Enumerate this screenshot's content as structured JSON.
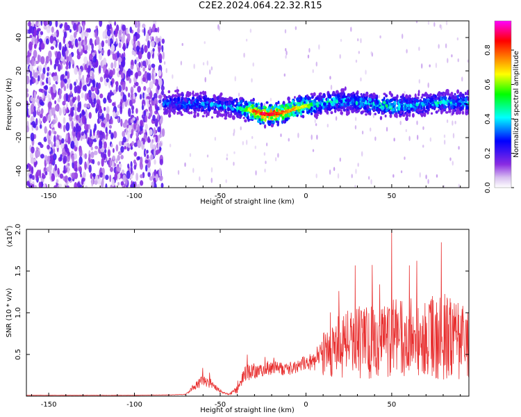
{
  "figure": {
    "title": "C2E2.2024.064.22.32.R15"
  },
  "colors": {
    "spectrogram_colormap": [
      "#ffffff",
      "#8a2be2",
      "#0000ff",
      "#00ffff",
      "#00ff00",
      "#ffff00",
      "#ff8000",
      "#ff0000",
      "#ff00ff"
    ],
    "snr_line": "#e83030"
  },
  "chart_data": [
    {
      "type": "heatmap",
      "xlabel": "Height of straight line (km)",
      "ylabel": "Frequency (Hz)",
      "xlim": [
        -163,
        95
      ],
      "ylim": [
        -50,
        50
      ],
      "xticks": [
        -150,
        -100,
        -50,
        0,
        50
      ],
      "yticks": [
        -40,
        -20,
        0,
        20,
        40
      ],
      "colorbar": {
        "label": "Normalized spectral amplitude",
        "range": [
          0,
          0.97
        ],
        "ticks": [
          0.0,
          0.2,
          0.4,
          0.6,
          0.8
        ]
      },
      "regions": [
        {
          "x": [
            -163,
            -83
          ],
          "y": [
            -50,
            50
          ],
          "amplitude": 0.2,
          "description": "broadband noise"
        },
        {
          "x": [
            -83,
            95
          ],
          "y": [
            -8,
            8
          ],
          "amplitude": 0.3,
          "description": "signal band"
        }
      ],
      "ridge": {
        "x": [
          -83,
          -75,
          -60,
          -45,
          -35,
          -30,
          -25,
          -20,
          -15,
          -10,
          -5,
          0,
          5,
          10,
          20,
          30,
          40,
          50,
          60,
          70,
          80,
          90
        ],
        "frequency": [
          0,
          1,
          0,
          -1,
          -3,
          -4,
          -6,
          -6,
          -5,
          -4,
          -2,
          -1,
          -1,
          1,
          2,
          1,
          0,
          -1,
          -1,
          0,
          1,
          1
        ],
        "amplitude": [
          0.35,
          0.4,
          0.4,
          0.4,
          0.6,
          0.9,
          0.95,
          0.95,
          0.9,
          0.85,
          0.75,
          0.7,
          0.55,
          0.5,
          0.45,
          0.45,
          0.5,
          0.6,
          0.45,
          0.45,
          0.5,
          0.45
        ]
      }
    },
    {
      "type": "line",
      "xlabel": "Height of straight line (km)",
      "ylabel": "SNR (10 * v/v)",
      "y_multiplier": "(x10",
      "y_multiplier_exp": "4",
      "y_multiplier_close": ")",
      "xlim": [
        -163,
        95
      ],
      "ylim": [
        0,
        20000
      ],
      "xticks": [
        -150,
        -100,
        -50,
        0,
        50
      ],
      "yticks": [
        5000,
        10000,
        15000,
        20000
      ],
      "ytick_labels": [
        "0.5",
        "1.0",
        "1.5",
        "2.0"
      ],
      "series": [
        {
          "x": [
            -163,
            -140,
            -120,
            -100,
            -80,
            -70,
            -65,
            -60,
            -55,
            -50,
            -45,
            -40,
            -35,
            -30,
            -25,
            -20,
            -15,
            -10,
            -5,
            0,
            5,
            10,
            20,
            30,
            40,
            50,
            60,
            70,
            80,
            90,
            95
          ],
          "y_mean": [
            100,
            100,
            100,
            100,
            150,
            200,
            1200,
            1800,
            1500,
            600,
            200,
            800,
            2800,
            3000,
            2800,
            3300,
            3300,
            3200,
            3500,
            3800,
            4300,
            5000,
            6000,
            6500,
            6500,
            7000,
            6800,
            6800,
            7200,
            6500,
            6500
          ],
          "y_spread": [
            20,
            20,
            20,
            20,
            30,
            100,
            800,
            1500,
            1200,
            400,
            150,
            900,
            2000,
            2000,
            1800,
            1800,
            1600,
            1500,
            1500,
            1600,
            2500,
            5000,
            8000,
            9000,
            9000,
            9500,
            9000,
            9000,
            10500,
            9000,
            9000
          ],
          "peak": {
            "x": 50,
            "y": 20000
          }
        }
      ]
    }
  ]
}
